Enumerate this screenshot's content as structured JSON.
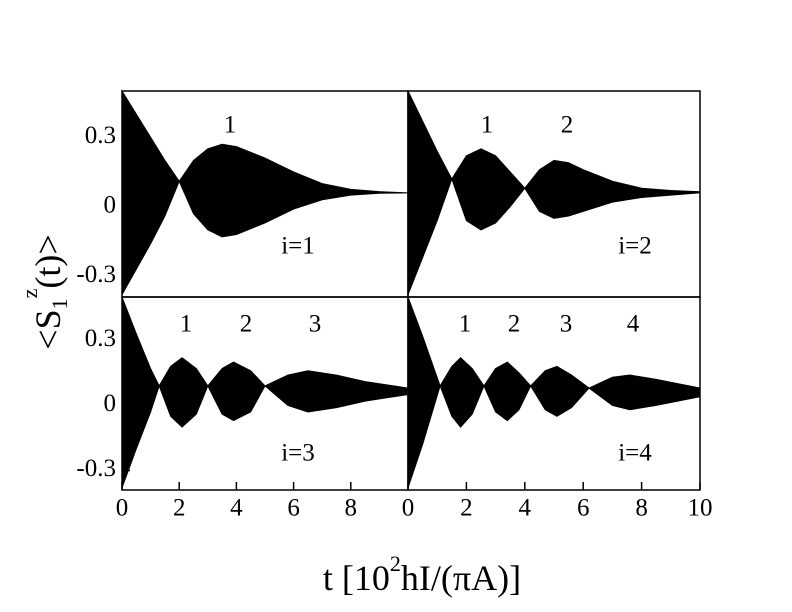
{
  "figure": {
    "x_label": {
      "main": "t [10",
      "sup": "2",
      "end": "hI/(πA)]"
    },
    "y_label": {
      "main": "<S",
      "sub": "1",
      "sup": "z",
      "end": "(t)>"
    }
  },
  "chart_data": [
    {
      "type": "envelope",
      "color": "#000000",
      "xlim": [
        0,
        10
      ],
      "ylim": [
        -0.39,
        0.5
      ],
      "yticks": [
        -0.3,
        0,
        0.3
      ],
      "x": [
        0,
        0.5,
        1,
        1.5,
        2,
        2.5,
        3,
        3.5,
        4,
        5,
        6,
        7,
        8,
        9,
        10
      ],
      "upper": [
        0.5,
        0.4,
        0.3,
        0.2,
        0.11,
        0.2,
        0.25,
        0.27,
        0.26,
        0.21,
        0.15,
        0.1,
        0.075,
        0.065,
        0.06
      ],
      "lower": [
        -0.38,
        -0.27,
        -0.16,
        -0.04,
        0.11,
        -0.03,
        -0.1,
        -0.13,
        -0.12,
        -0.07,
        -0.01,
        0.03,
        0.05,
        0.058,
        0.06
      ],
      "peak_labels": [
        "1"
      ],
      "panel_label": "i=1"
    },
    {
      "type": "envelope",
      "color": "#000000",
      "xlim": [
        0,
        10
      ],
      "ylim": [
        -0.39,
        0.5
      ],
      "x": [
        0,
        0.5,
        1,
        1.5,
        2,
        2.5,
        3,
        3.5,
        4,
        4.5,
        5,
        5.5,
        6,
        7,
        8,
        9,
        10
      ],
      "upper": [
        0.5,
        0.37,
        0.24,
        0.12,
        0.22,
        0.25,
        0.22,
        0.15,
        0.08,
        0.16,
        0.2,
        0.19,
        0.16,
        0.11,
        0.08,
        0.07,
        0.065
      ],
      "lower": [
        -0.38,
        -0.22,
        -0.06,
        0.12,
        -0.06,
        -0.1,
        -0.07,
        0.0,
        0.08,
        -0.02,
        -0.05,
        -0.04,
        -0.02,
        0.02,
        0.04,
        0.05,
        0.06
      ],
      "peak_labels": [
        "1",
        "2"
      ],
      "panel_label": "i=2"
    },
    {
      "type": "envelope",
      "color": "#000000",
      "xlim": [
        0,
        10
      ],
      "ylim": [
        -0.39,
        0.5
      ],
      "xticks": [
        0,
        2,
        4,
        6,
        8
      ],
      "yticks": [
        -0.3,
        0,
        0.3
      ],
      "x": [
        0,
        0.5,
        1,
        1.3,
        1.7,
        2.1,
        2.6,
        3,
        3.5,
        3.9,
        4.5,
        5,
        5.8,
        6.5,
        7.5,
        8.5,
        10
      ],
      "upper": [
        0.5,
        0.33,
        0.17,
        0.09,
        0.18,
        0.22,
        0.17,
        0.09,
        0.17,
        0.2,
        0.16,
        0.09,
        0.14,
        0.16,
        0.14,
        0.11,
        0.08
      ],
      "lower": [
        -0.38,
        -0.2,
        -0.03,
        0.09,
        -0.05,
        -0.1,
        -0.04,
        0.09,
        -0.04,
        -0.07,
        -0.03,
        0.09,
        0.0,
        -0.03,
        -0.01,
        0.02,
        0.05
      ],
      "peak_labels": [
        "1",
        "2",
        "3"
      ],
      "panel_label": "i=3"
    },
    {
      "type": "envelope",
      "color": "#000000",
      "xlim": [
        0,
        10
      ],
      "ylim": [
        -0.39,
        0.5
      ],
      "xticks": [
        0,
        2,
        4,
        6,
        8,
        10
      ],
      "x": [
        0,
        0.5,
        1.1,
        1.5,
        1.8,
        2.2,
        2.6,
        3,
        3.4,
        3.8,
        4.2,
        4.7,
        5.1,
        5.6,
        6.2,
        7,
        7.6,
        8.5,
        10
      ],
      "upper": [
        0.5,
        0.32,
        0.09,
        0.18,
        0.22,
        0.17,
        0.09,
        0.17,
        0.2,
        0.15,
        0.09,
        0.16,
        0.18,
        0.14,
        0.08,
        0.13,
        0.14,
        0.12,
        0.08
      ],
      "lower": [
        -0.38,
        -0.18,
        0.09,
        -0.05,
        -0.1,
        -0.04,
        0.09,
        -0.03,
        -0.07,
        -0.02,
        0.09,
        -0.02,
        -0.05,
        -0.01,
        0.08,
        0.0,
        -0.02,
        0.0,
        0.04
      ],
      "peak_labels": [
        "1",
        "2",
        "3",
        "4"
      ],
      "panel_label": "i=4"
    }
  ]
}
